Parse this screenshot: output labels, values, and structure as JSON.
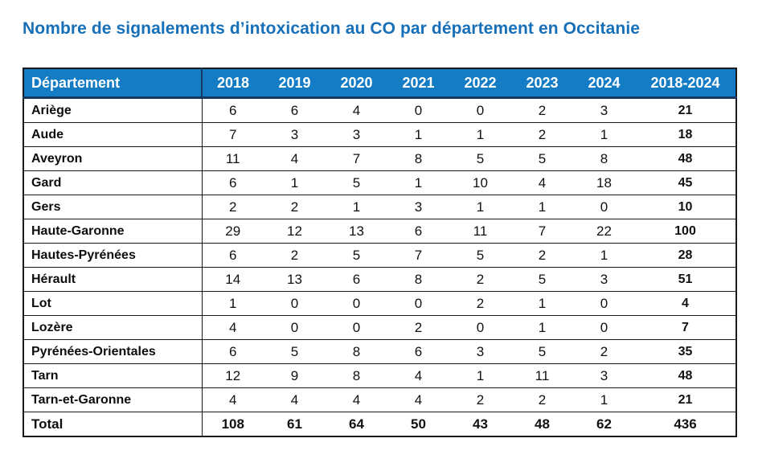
{
  "page": {
    "title": "Nombre de signalements d’intoxication au CO par département en Occitanie"
  },
  "chart_data": {
    "type": "table",
    "title": "Nombre de signalements d’intoxication au CO par département en Occitanie",
    "columns": [
      "Département",
      "2018",
      "2019",
      "2020",
      "2021",
      "2022",
      "2023",
      "2024",
      "2018-2024"
    ],
    "rows": [
      {
        "department": "Ariège",
        "values": [
          6,
          6,
          4,
          0,
          0,
          2,
          3
        ],
        "total": 21
      },
      {
        "department": "Aude",
        "values": [
          7,
          3,
          3,
          1,
          1,
          2,
          1
        ],
        "total": 18
      },
      {
        "department": "Aveyron",
        "values": [
          11,
          4,
          7,
          8,
          5,
          5,
          8
        ],
        "total": 48
      },
      {
        "department": "Gard",
        "values": [
          6,
          1,
          5,
          1,
          10,
          4,
          18
        ],
        "total": 45
      },
      {
        "department": "Gers",
        "values": [
          2,
          2,
          1,
          3,
          1,
          1,
          0
        ],
        "total": 10
      },
      {
        "department": "Haute-Garonne",
        "values": [
          29,
          12,
          13,
          6,
          11,
          7,
          22
        ],
        "total": 100
      },
      {
        "department": "Hautes-Pyrénées",
        "values": [
          6,
          2,
          5,
          7,
          5,
          2,
          1
        ],
        "total": 28
      },
      {
        "department": "Hérault",
        "values": [
          14,
          13,
          6,
          8,
          2,
          5,
          3
        ],
        "total": 51
      },
      {
        "department": "Lot",
        "values": [
          1,
          0,
          0,
          0,
          2,
          1,
          0
        ],
        "total": 4
      },
      {
        "department": "Lozère",
        "values": [
          4,
          0,
          0,
          2,
          0,
          1,
          0
        ],
        "total": 7
      },
      {
        "department": "Pyrénées-Orientales",
        "values": [
          6,
          5,
          8,
          6,
          3,
          5,
          2
        ],
        "total": 35
      },
      {
        "department": "Tarn",
        "values": [
          12,
          9,
          8,
          4,
          1,
          11,
          3
        ],
        "total": 48
      },
      {
        "department": "Tarn-et-Garonne",
        "values": [
          4,
          4,
          4,
          4,
          2,
          2,
          1
        ],
        "total": 21
      }
    ],
    "total_row": {
      "department": "Total",
      "values": [
        108,
        61,
        64,
        50,
        43,
        48,
        62
      ],
      "total": 436
    },
    "layout": {
      "first_column_align": "left",
      "value_align": "center",
      "grid": "horizontal-lines-only"
    }
  },
  "colors": {
    "title_blue": "#176FB8",
    "header_bg": "#137CC4",
    "header_text": "#FFFFFF",
    "header_border": "#17375E",
    "grid_border": "#1A1A1A"
  }
}
